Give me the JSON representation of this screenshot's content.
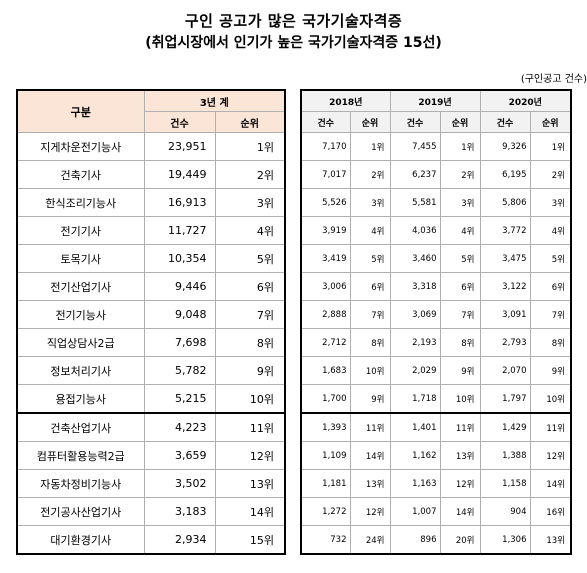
{
  "title": "구인 공고가 많은 국가기술자격증",
  "subtitle": "(취업시장에서 인기가 높은 국가기술자격증 15선)",
  "unit_note": "(구인공고 건수)",
  "headers": {
    "category": "구분",
    "three_year": "3년 계",
    "count": "건수",
    "rank": "순위",
    "years": [
      "2018년",
      "2019년",
      "2020년"
    ]
  },
  "rows": [
    {
      "name": "지게차운전기능사",
      "total": "23,951",
      "total_rank": "1위",
      "y2018": "7,170",
      "r2018": "1위",
      "y2019": "7,455",
      "r2019": "1위",
      "y2020": "9,326",
      "r2020": "1위"
    },
    {
      "name": "건축기사",
      "total": "19,449",
      "total_rank": "2위",
      "y2018": "7,017",
      "r2018": "2위",
      "y2019": "6,237",
      "r2019": "2위",
      "y2020": "6,195",
      "r2020": "2위"
    },
    {
      "name": "한식조리기능사",
      "total": "16,913",
      "total_rank": "3위",
      "y2018": "5,526",
      "r2018": "3위",
      "y2019": "5,581",
      "r2019": "3위",
      "y2020": "5,806",
      "r2020": "3위"
    },
    {
      "name": "전기기사",
      "total": "11,727",
      "total_rank": "4위",
      "y2018": "3,919",
      "r2018": "4위",
      "y2019": "4,036",
      "r2019": "4위",
      "y2020": "3,772",
      "r2020": "4위"
    },
    {
      "name": "토목기사",
      "total": "10,354",
      "total_rank": "5위",
      "y2018": "3,419",
      "r2018": "5위",
      "y2019": "3,460",
      "r2019": "5위",
      "y2020": "3,475",
      "r2020": "5위"
    },
    {
      "name": "전기산업기사",
      "total": "9,446",
      "total_rank": "6위",
      "y2018": "3,006",
      "r2018": "6위",
      "y2019": "3,318",
      "r2019": "6위",
      "y2020": "3,122",
      "r2020": "6위"
    },
    {
      "name": "전기기능사",
      "total": "9,048",
      "total_rank": "7위",
      "y2018": "2,888",
      "r2018": "7위",
      "y2019": "3,069",
      "r2019": "7위",
      "y2020": "3,091",
      "r2020": "7위"
    },
    {
      "name": "직업상담사2급",
      "total": "7,698",
      "total_rank": "8위",
      "y2018": "2,712",
      "r2018": "8위",
      "y2019": "2,193",
      "r2019": "8위",
      "y2020": "2,793",
      "r2020": "8위"
    },
    {
      "name": "정보처리기사",
      "total": "5,782",
      "total_rank": "9위",
      "y2018": "1,683",
      "r2018": "10위",
      "y2019": "2,029",
      "r2019": "9위",
      "y2020": "2,070",
      "r2020": "9위"
    },
    {
      "name": "용접기능사",
      "total": "5,215",
      "total_rank": "10위",
      "y2018": "1,700",
      "r2018": "9위",
      "y2019": "1,718",
      "r2019": "10위",
      "y2020": "1,797",
      "r2020": "10위"
    },
    {
      "name": "건축산업기사",
      "total": "4,223",
      "total_rank": "11위",
      "y2018": "1,393",
      "r2018": "11위",
      "y2019": "1,401",
      "r2019": "11위",
      "y2020": "1,429",
      "r2020": "11위"
    },
    {
      "name": "컴퓨터활용능력2급",
      "total": "3,659",
      "total_rank": "12위",
      "y2018": "1,109",
      "r2018": "14위",
      "y2019": "1,162",
      "r2019": "13위",
      "y2020": "1,388",
      "r2020": "12위"
    },
    {
      "name": "자동차정비기능사",
      "total": "3,502",
      "total_rank": "13위",
      "y2018": "1,181",
      "r2018": "13위",
      "y2019": "1,163",
      "r2019": "12위",
      "y2020": "1,158",
      "r2020": "14위"
    },
    {
      "name": "전기공사산업기사",
      "total": "3,183",
      "total_rank": "14위",
      "y2018": "1,272",
      "r2018": "12위",
      "y2019": "1,007",
      "r2019": "14위",
      "y2020": "904",
      "r2020": "16위"
    },
    {
      "name": "대기환경기사",
      "total": "2,934",
      "total_rank": "15위",
      "y2018": "732",
      "r2018": "24위",
      "y2019": "896",
      "r2019": "20위",
      "y2020": "1,306",
      "r2020": "13위"
    }
  ]
}
